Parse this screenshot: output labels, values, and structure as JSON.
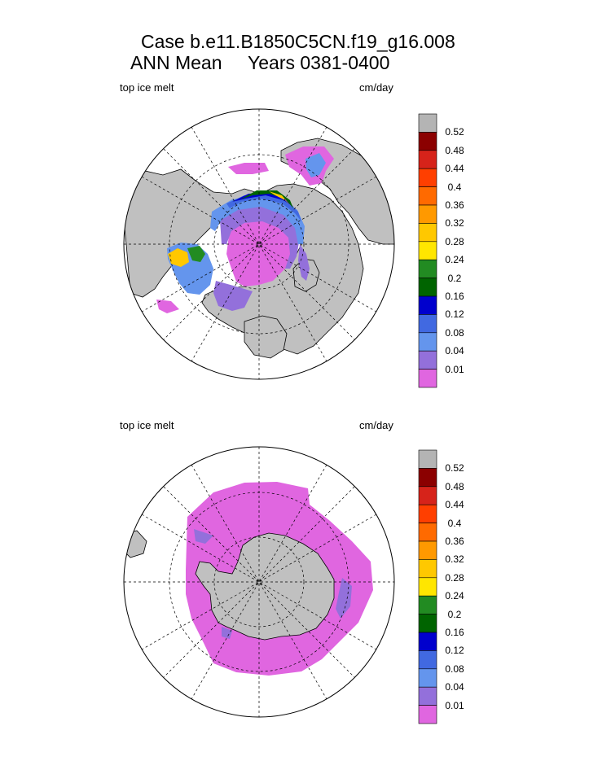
{
  "title_line1": "Case b.e11.B1850C5CN.f19_g16.008",
  "title_line2": "ANN Mean     Years 0381-0400",
  "panels": [
    {
      "variable_label": "top ice melt",
      "units_label": "cm/day"
    },
    {
      "variable_label": "top ice melt",
      "units_label": "cm/day"
    }
  ],
  "colorbar": {
    "labels": [
      "0.52",
      "0.48",
      "0.44",
      "0.4",
      "0.36",
      "0.32",
      "0.28",
      "0.24",
      "0.2",
      "0.16",
      "0.12",
      "0.08",
      "0.04",
      "0.01"
    ],
    "colors": [
      "#b4b4b4",
      "#8b0000",
      "#d6231a",
      "#ff3f00",
      "#ff6a00",
      "#ff9900",
      "#ffc800",
      "#ffe600",
      "#228b22",
      "#006400",
      "#0000cd",
      "#4169e1",
      "#6495ed",
      "#9370db",
      "#e066e0"
    ]
  },
  "map_colors": {
    "land": "#c0c0c0",
    "ocean": "#ffffff",
    "ice_low": "#e066e0",
    "ice_004": "#9370db",
    "ice_008": "#6495ed",
    "ice_012": "#4169e1",
    "ice_016": "#0000cd"
  }
}
